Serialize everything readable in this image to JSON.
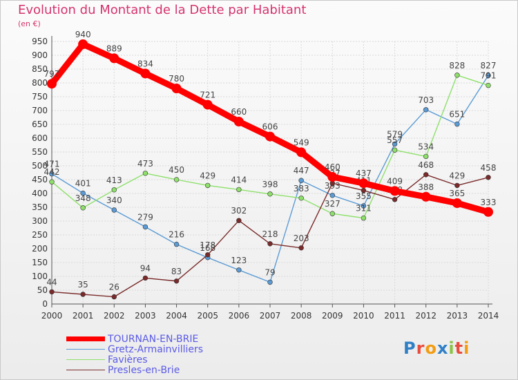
{
  "header": {
    "title": "Evolution du Montant de la Dette par Habitant",
    "unit": "(en €)"
  },
  "logo": {
    "text": "Proxiti"
  },
  "colors": {
    "title": "#d5336e",
    "legend_text": "#5a5ae6",
    "grid": "#d9d9d9",
    "axis": "#555555"
  },
  "chart_data": {
    "type": "line",
    "title": "Evolution du Montant de la Dette par Habitant",
    "ylabel": "(en €)",
    "xlabel": "",
    "ylim": [
      0,
      950
    ],
    "ytick_step": 50,
    "grid": true,
    "legend_placement": "bottom-left",
    "categories": [
      "2000",
      "2001",
      "2002",
      "2003",
      "2004",
      "2005",
      "2006",
      "2007",
      "2008",
      "2009",
      "2010",
      "2011",
      "2012",
      "2013",
      "2014"
    ],
    "series": [
      {
        "name": "TOURNAN-EN-BRIE",
        "color": "#ff0000",
        "emphasis": true,
        "values": [
          797,
          940,
          889,
          834,
          780,
          721,
          660,
          606,
          549,
          460,
          437,
          409,
          388,
          365,
          333
        ]
      },
      {
        "name": "Gretz-Armainvilliers",
        "color": "#5b9bd5",
        "emphasis": false,
        "values": [
          471,
          401,
          340,
          279,
          216,
          168,
          123,
          79,
          447,
          393,
          355,
          579,
          703,
          651,
          827
        ]
      },
      {
        "name": "Favières",
        "color": "#8ee06b",
        "emphasis": false,
        "values": [
          442,
          348,
          413,
          473,
          450,
          429,
          414,
          398,
          383,
          327,
          311,
          557,
          534,
          828,
          791
        ]
      },
      {
        "name": "Presles-en-Brie",
        "color": "#7a2a2a",
        "emphasis": false,
        "values": [
          44,
          35,
          26,
          94,
          83,
          178,
          302,
          218,
          203,
          437,
          411,
          378,
          468,
          429,
          458
        ]
      }
    ]
  }
}
